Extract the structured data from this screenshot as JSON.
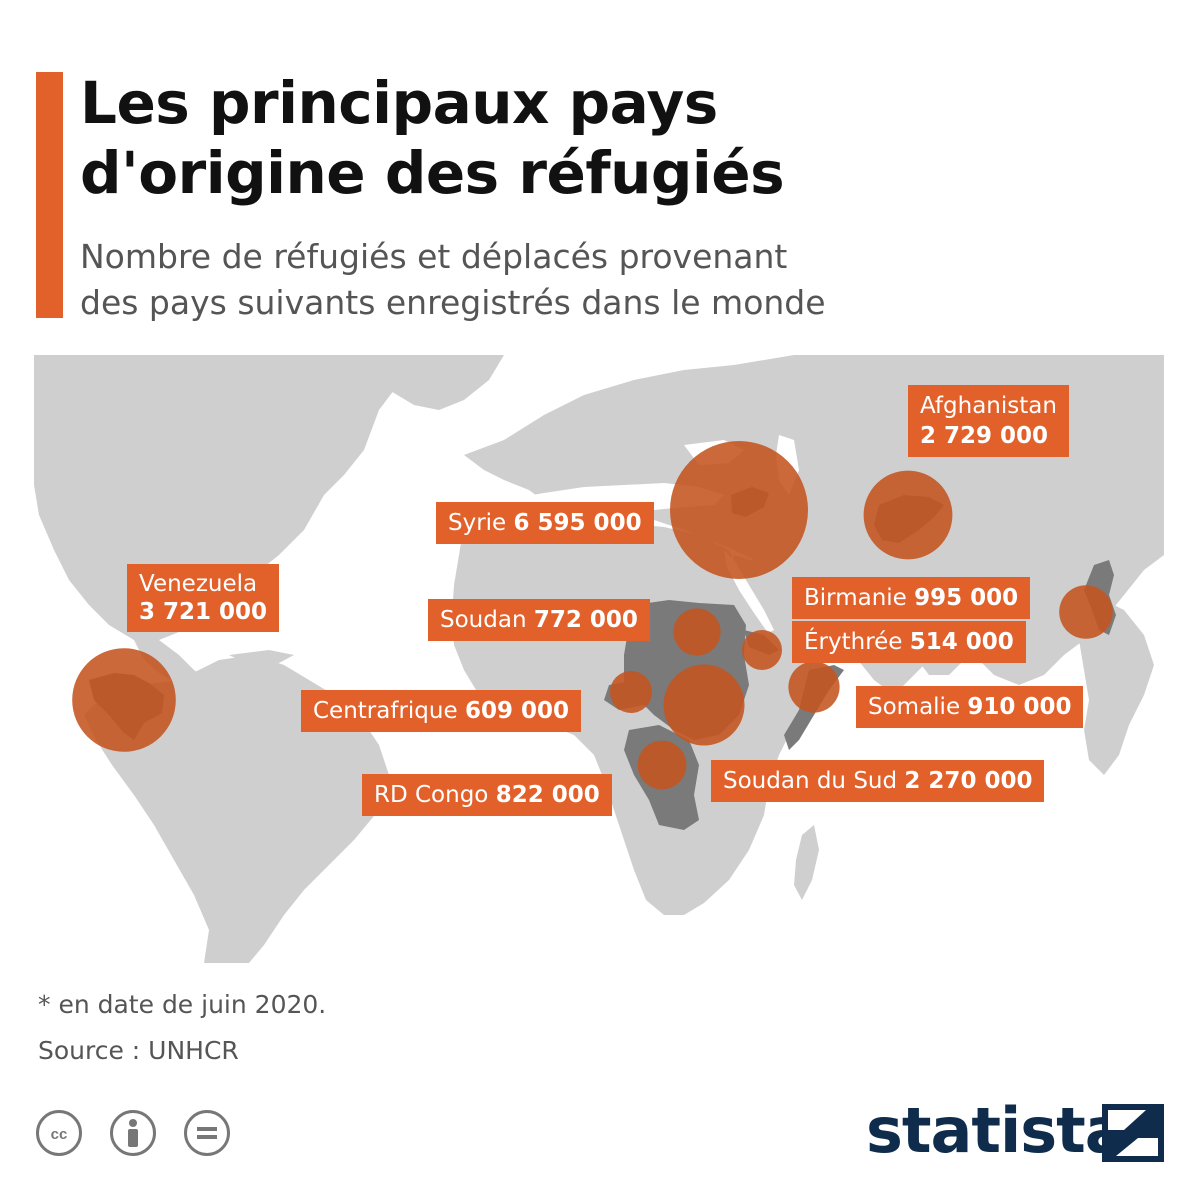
{
  "header": {
    "title_line1": "Les principaux pays",
    "title_line2": "d'origine des réfugiés",
    "subtitle_line1": "Nombre de réfugiés et déplacés provenant",
    "subtitle_line2": "des pays suivants enregistrés dans le monde"
  },
  "colors": {
    "accent": "#e2612b",
    "marker": "#c4541f",
    "marker_inner": "#6e2d14",
    "land": "#cfcfcf",
    "highlight_land": "#7a7a7a",
    "ocean": "#ffffff",
    "brand": "#0f2c4c"
  },
  "countries": [
    {
      "name": "Syrie",
      "value_text": "6 595 000",
      "value": 6595000
    },
    {
      "name": "Venezuela",
      "value_text": "3 721 000",
      "value": 3721000
    },
    {
      "name": "Afghanistan",
      "value_text": "2 729 000",
      "value": 2729000
    },
    {
      "name": "Soudan du Sud",
      "value_text": "2 270 000",
      "value": 2270000
    },
    {
      "name": "Birmanie",
      "value_text": "995 000",
      "value": 995000
    },
    {
      "name": "Somalie",
      "value_text": "910 000",
      "value": 910000
    },
    {
      "name": "RD Congo",
      "value_text": "822 000",
      "value": 822000
    },
    {
      "name": "Soudan",
      "value_text": "772 000",
      "value": 772000
    },
    {
      "name": "Centrafrique",
      "value_text": "609 000",
      "value": 609000
    },
    {
      "name": "Érythrée",
      "value_text": "514 000",
      "value": 514000
    }
  ],
  "footer": {
    "note": "* en date de juin 2020.",
    "source": "Source : UNHCR",
    "brand": "statista"
  },
  "license_icons": [
    "creative-commons-icon",
    "attribution-icon",
    "no-derivatives-icon"
  ]
}
